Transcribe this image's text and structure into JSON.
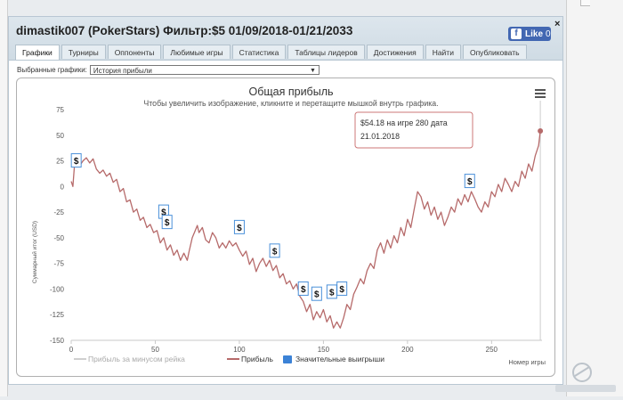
{
  "header": {
    "title": "dimastik007 (PokerStars) Фильтр:$5 01/09/2018-01/21/2033",
    "fb_like": "Like",
    "fb_count": "0",
    "close": "×"
  },
  "tabs": [
    {
      "label": "Графики",
      "active": true
    },
    {
      "label": "Турниры"
    },
    {
      "label": "Оппоненты"
    },
    {
      "label": "Любимые игры"
    },
    {
      "label": "Статистика"
    },
    {
      "label": "Таблицы лидеров"
    },
    {
      "label": "Достижения"
    },
    {
      "label": "Найти"
    },
    {
      "label": "Опубликовать"
    }
  ],
  "selector": {
    "label": "Выбранные графики:",
    "value": "История прибыли"
  },
  "chart_data": {
    "type": "line",
    "title": "Общая прибыль",
    "subtitle": "Чтобы увеличить изображение, кликните и перетащите мышкой внутрь графика.",
    "ylabel": "Суммарный итог (USD)",
    "xlabel": "Номер игры",
    "xlim": [
      0,
      280
    ],
    "ylim": [
      -150,
      75
    ],
    "x_ticks": [
      0,
      50,
      100,
      150,
      200,
      250
    ],
    "y_ticks": [
      75,
      50,
      25,
      0,
      -25,
      -50,
      -75,
      -100,
      -125,
      -150
    ],
    "series": [
      {
        "name": "Прибыль",
        "color": "#b66a6a",
        "points": [
          [
            0,
            5
          ],
          [
            1,
            0
          ],
          [
            2,
            22
          ],
          [
            3,
            27
          ],
          [
            5,
            20
          ],
          [
            7,
            25
          ],
          [
            9,
            28
          ],
          [
            11,
            23
          ],
          [
            13,
            27
          ],
          [
            15,
            17
          ],
          [
            17,
            13
          ],
          [
            19,
            16
          ],
          [
            21,
            10
          ],
          [
            23,
            13
          ],
          [
            25,
            4
          ],
          [
            27,
            7
          ],
          [
            29,
            -5
          ],
          [
            31,
            -2
          ],
          [
            33,
            -15
          ],
          [
            35,
            -13
          ],
          [
            37,
            -25
          ],
          [
            39,
            -22
          ],
          [
            41,
            -33
          ],
          [
            43,
            -30
          ],
          [
            45,
            -40
          ],
          [
            47,
            -37
          ],
          [
            49,
            -45
          ],
          [
            51,
            -43
          ],
          [
            53,
            -55
          ],
          [
            55,
            -50
          ],
          [
            57,
            -62
          ],
          [
            59,
            -57
          ],
          [
            61,
            -67
          ],
          [
            63,
            -62
          ],
          [
            65,
            -72
          ],
          [
            67,
            -65
          ],
          [
            69,
            -72
          ],
          [
            70,
            -64
          ],
          [
            72,
            -50
          ],
          [
            74,
            -42
          ],
          [
            75,
            -38
          ],
          [
            76,
            -45
          ],
          [
            78,
            -40
          ],
          [
            80,
            -52
          ],
          [
            82,
            -55
          ],
          [
            84,
            -45
          ],
          [
            86,
            -50
          ],
          [
            88,
            -60
          ],
          [
            90,
            -55
          ],
          [
            92,
            -60
          ],
          [
            94,
            -53
          ],
          [
            96,
            -58
          ],
          [
            98,
            -55
          ],
          [
            100,
            -62
          ],
          [
            102,
            -68
          ],
          [
            104,
            -63
          ],
          [
            106,
            -76
          ],
          [
            108,
            -70
          ],
          [
            110,
            -83
          ],
          [
            112,
            -75
          ],
          [
            114,
            -70
          ],
          [
            116,
            -78
          ],
          [
            118,
            -72
          ],
          [
            120,
            -82
          ],
          [
            122,
            -77
          ],
          [
            124,
            -89
          ],
          [
            126,
            -85
          ],
          [
            128,
            -95
          ],
          [
            130,
            -92
          ],
          [
            132,
            -100
          ],
          [
            134,
            -95
          ],
          [
            136,
            -107
          ],
          [
            138,
            -112
          ],
          [
            140,
            -122
          ],
          [
            142,
            -115
          ],
          [
            144,
            -130
          ],
          [
            146,
            -122
          ],
          [
            148,
            -128
          ],
          [
            150,
            -120
          ],
          [
            152,
            -132
          ],
          [
            154,
            -126
          ],
          [
            156,
            -138
          ],
          [
            158,
            -132
          ],
          [
            160,
            -138
          ],
          [
            162,
            -128
          ],
          [
            164,
            -115
          ],
          [
            166,
            -120
          ],
          [
            168,
            -105
          ],
          [
            170,
            -98
          ],
          [
            172,
            -90
          ],
          [
            174,
            -95
          ],
          [
            176,
            -82
          ],
          [
            178,
            -75
          ],
          [
            180,
            -80
          ],
          [
            182,
            -62
          ],
          [
            184,
            -55
          ],
          [
            186,
            -65
          ],
          [
            188,
            -52
          ],
          [
            190,
            -60
          ],
          [
            192,
            -48
          ],
          [
            194,
            -55
          ],
          [
            196,
            -40
          ],
          [
            198,
            -48
          ],
          [
            200,
            -32
          ],
          [
            202,
            -40
          ],
          [
            204,
            -22
          ],
          [
            206,
            -5
          ],
          [
            208,
            -10
          ],
          [
            210,
            -22
          ],
          [
            212,
            -15
          ],
          [
            214,
            -28
          ],
          [
            216,
            -20
          ],
          [
            218,
            -32
          ],
          [
            220,
            -25
          ],
          [
            222,
            -38
          ],
          [
            224,
            -30
          ],
          [
            226,
            -20
          ],
          [
            228,
            -25
          ],
          [
            230,
            -12
          ],
          [
            232,
            -18
          ],
          [
            234,
            -8
          ],
          [
            236,
            -15
          ],
          [
            238,
            -5
          ],
          [
            240,
            -12
          ],
          [
            242,
            -20
          ],
          [
            244,
            -25
          ],
          [
            246,
            -15
          ],
          [
            248,
            -20
          ],
          [
            250,
            -5
          ],
          [
            252,
            -10
          ],
          [
            254,
            2
          ],
          [
            256,
            -5
          ],
          [
            258,
            8
          ],
          [
            260,
            2
          ],
          [
            262,
            -5
          ],
          [
            264,
            5
          ],
          [
            266,
            0
          ],
          [
            268,
            15
          ],
          [
            270,
            8
          ],
          [
            272,
            22
          ],
          [
            274,
            15
          ],
          [
            276,
            30
          ],
          [
            278,
            40
          ],
          [
            279,
            54.18
          ]
        ]
      }
    ],
    "markers": [
      [
        3,
        25
      ],
      [
        55,
        -25
      ],
      [
        57,
        -35
      ],
      [
        100,
        -40
      ],
      [
        121,
        -63
      ],
      [
        138,
        -100
      ],
      [
        146,
        -105
      ],
      [
        155,
        -103
      ],
      [
        161,
        -100
      ],
      [
        237,
        5
      ]
    ],
    "marker_symbol": "$",
    "legend": [
      {
        "name": "Прибыль за минусом рейка",
        "color": "#cfcfcf"
      },
      {
        "name": "Прибыль",
        "color": "#b66a6a"
      },
      {
        "name": "Значительные выигрыши",
        "color": "#3b82d6"
      }
    ],
    "tooltip": {
      "line1": "$54.18 на игре 280 дата",
      "line2": "21.01.2018"
    },
    "hover_x": 279
  }
}
